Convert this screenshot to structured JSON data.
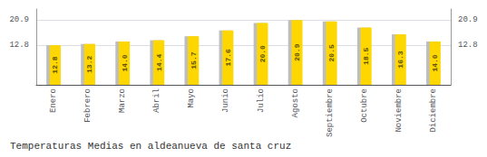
{
  "chart_data": {
    "type": "bar",
    "title": "Temperaturas Medias en aldeanueva de santa cruz",
    "categories": [
      "Enero",
      "Febrero",
      "Marzo",
      "Abril",
      "Mayo",
      "Junio",
      "Julio",
      "Agosto",
      "Septiembre",
      "Octubre",
      "Noviembre",
      "Diciembre"
    ],
    "series": [
      {
        "color": "#BEBEBE",
        "values": [
          12.8,
          13.2,
          14.0,
          14.4,
          15.7,
          17.6,
          20.0,
          20.9,
          20.5,
          18.5,
          16.3,
          14.0
        ]
      },
      {
        "color": "#FFD700",
        "values": [
          12.8,
          13.2,
          14.0,
          14.4,
          15.7,
          17.6,
          20.0,
          20.9,
          20.5,
          18.5,
          16.3,
          14.0
        ],
        "value_labels": [
          "12.8",
          "13.2",
          "14.0",
          "14.4",
          "15.7",
          "17.6",
          "20.0",
          "20.9",
          "20.5",
          "18.5",
          "16.3",
          "14.0"
        ]
      }
    ],
    "ylim": [
      0.0,
      24.5
    ],
    "yticks": [
      12.8,
      20.9
    ],
    "grid": true,
    "data_labels": true
  }
}
